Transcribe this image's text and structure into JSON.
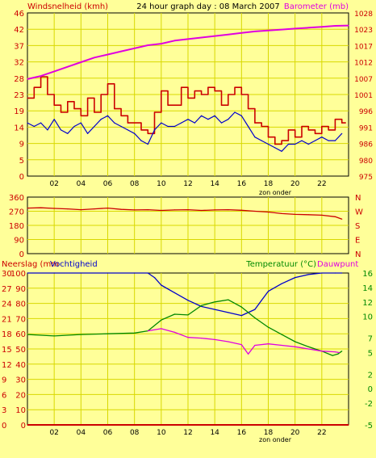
{
  "header": {
    "left_label": "Windsnelheid (kmh)",
    "title": "24 hour graph day : 08 March 2007",
    "right_label": "Barometer (mb)"
  },
  "colors": {
    "background": "#ffff99",
    "plot_background": "#ffff99",
    "grid": "#d8d800",
    "axis_text": "#cc0000",
    "wind": "#cc0000",
    "gust": "#0000cc",
    "barometer": "#e000e0",
    "direction": "#cc0000",
    "humidity": "#0000cc",
    "temperature": "#008800",
    "dewpoint": "#e000e0",
    "rain": "#cc0000",
    "green_text": "#008800"
  },
  "chart_data": [
    {
      "type": "line",
      "name": "wind-barometer",
      "x_ticks": [
        "02",
        "04",
        "06",
        "08",
        "10",
        "12",
        "14",
        "16",
        "18",
        "20",
        "22"
      ],
      "x_note": "zon onder",
      "y_left_ticks": [
        0,
        5,
        9,
        14,
        19,
        23,
        28,
        32,
        37,
        42,
        46
      ],
      "y_right_ticks": [
        975,
        980,
        986,
        991,
        996,
        1001,
        1007,
        1012,
        1017,
        1023,
        1028
      ],
      "xlim": [
        0,
        24
      ],
      "ylim_left": [
        0,
        46
      ],
      "ylim_right": [
        975,
        1028
      ],
      "series": [
        {
          "key": "wind",
          "axis": "left",
          "style": "step",
          "x": [
            0,
            0.5,
            1,
            1.5,
            2,
            2.5,
            3,
            3.5,
            4,
            4.5,
            5,
            5.5,
            6,
            6.5,
            7,
            7.5,
            8,
            8.5,
            9,
            9.5,
            10,
            10.5,
            11,
            11.5,
            12,
            12.5,
            13,
            13.5,
            14,
            14.5,
            15,
            15.5,
            16,
            16.5,
            17,
            17.5,
            18,
            18.5,
            19,
            19.5,
            20,
            20.5,
            21,
            21.5,
            22,
            22.5,
            23,
            23.5
          ],
          "values": [
            22,
            25,
            28,
            23,
            20,
            18,
            21,
            19,
            17,
            22,
            18,
            23,
            26,
            19,
            17,
            15,
            15,
            13,
            12,
            18,
            24,
            20,
            20,
            25,
            22,
            24,
            23,
            25,
            24,
            20,
            23,
            25,
            23,
            19,
            15,
            14,
            11,
            9,
            10,
            13,
            11,
            14,
            13,
            12,
            14,
            13,
            16,
            15
          ]
        },
        {
          "key": "gust",
          "axis": "left",
          "style": "line",
          "x": [
            0,
            0.5,
            1,
            1.5,
            2,
            2.5,
            3,
            3.5,
            4,
            4.5,
            5,
            5.5,
            6,
            6.5,
            7,
            7.5,
            8,
            8.5,
            9,
            9.5,
            10,
            10.5,
            11,
            11.5,
            12,
            12.5,
            13,
            13.5,
            14,
            14.5,
            15,
            15.5,
            16,
            16.5,
            17,
            17.5,
            18,
            18.5,
            19,
            19.5,
            20,
            20.5,
            21,
            21.5,
            22,
            22.5,
            23,
            23.5
          ],
          "values": [
            15,
            14,
            15,
            13,
            16,
            13,
            12,
            14,
            15,
            12,
            14,
            16,
            17,
            15,
            14,
            13,
            12,
            10,
            9,
            13,
            15,
            14,
            14,
            15,
            16,
            15,
            17,
            16,
            17,
            15,
            16,
            18,
            17,
            14,
            11,
            10,
            9,
            8,
            7,
            9,
            9,
            10,
            9,
            10,
            11,
            10,
            10,
            12
          ]
        },
        {
          "key": "barometer",
          "axis": "right",
          "style": "line",
          "x": [
            0,
            1,
            2,
            3,
            4,
            5,
            6,
            7,
            8,
            9,
            10,
            11,
            12,
            13,
            14,
            15,
            16,
            17,
            18,
            19,
            20,
            21,
            22,
            23,
            24
          ],
          "values": [
            1006.5,
            1007.5,
            1009,
            1010.5,
            1012,
            1013.5,
            1014.5,
            1015.5,
            1016.5,
            1017.5,
            1018,
            1019,
            1019.5,
            1020,
            1020.5,
            1021,
            1021.5,
            1022,
            1022.3,
            1022.6,
            1022.9,
            1023.2,
            1023.5,
            1023.8,
            1023.9
          ]
        }
      ]
    },
    {
      "type": "line",
      "name": "wind-direction",
      "y_left_ticks": [
        0,
        90,
        180,
        270,
        360
      ],
      "y_right_ticks": [
        "N",
        "E",
        "S",
        "W",
        "N"
      ],
      "xlim": [
        0,
        24
      ],
      "ylim": [
        0,
        360
      ],
      "series": [
        {
          "key": "direction",
          "style": "line",
          "x": [
            0,
            1,
            2,
            3,
            4,
            5,
            6,
            7,
            8,
            9,
            10,
            11,
            12,
            13,
            14,
            15,
            16,
            17,
            18,
            19,
            20,
            21,
            22,
            23,
            23.5
          ],
          "values": [
            290,
            292,
            288,
            285,
            280,
            285,
            290,
            282,
            278,
            280,
            275,
            278,
            280,
            275,
            278,
            280,
            276,
            270,
            265,
            255,
            250,
            248,
            245,
            235,
            220
          ]
        }
      ]
    },
    {
      "type": "line",
      "name": "rain-humidity-temperature",
      "left_label_1": "Neerslag (mm",
      "left_label_2": "Vochtigheid",
      "right_label_1": "Temperatuur (°C)",
      "right_label_2": "Dauwpunt",
      "x_ticks": [
        "02",
        "04",
        "06",
        "08",
        "10",
        "12",
        "14",
        "16",
        "18",
        "20",
        "22"
      ],
      "x_note": "zon onder",
      "y_rain_ticks": [
        0,
        3,
        6,
        9,
        12,
        15,
        18,
        21,
        24,
        27,
        30
      ],
      "y_humidity_ticks": [
        0,
        10,
        20,
        30,
        40,
        50,
        60,
        70,
        80,
        90,
        100
      ],
      "y_temp_ticks": [
        -5,
        -2,
        0,
        2,
        5,
        7,
        10,
        12,
        14,
        16
      ],
      "xlim": [
        0,
        24
      ],
      "ylim_humidity": [
        0,
        100
      ],
      "ylim_temp": [
        -5,
        16
      ],
      "series": [
        {
          "key": "humidity",
          "axis": "humidity",
          "style": "line",
          "x": [
            0,
            2,
            4,
            6,
            8,
            9,
            9.5,
            10,
            11,
            12,
            13,
            14,
            15,
            16,
            17,
            17.5,
            18,
            19,
            20,
            21,
            22,
            23,
            23.5
          ],
          "values": [
            100,
            100,
            100,
            100,
            100,
            100,
            97,
            92,
            87,
            82,
            78,
            76,
            74,
            72,
            76,
            82,
            88,
            93,
            97,
            99,
            100,
            100,
            100
          ]
        },
        {
          "key": "temperature",
          "axis": "temp",
          "style": "line",
          "x": [
            0,
            2,
            4,
            6,
            8,
            9,
            10,
            11,
            12,
            13,
            14,
            15,
            16,
            17,
            18,
            19,
            20,
            21,
            22,
            22.8,
            23.2,
            23.5
          ],
          "values": [
            7.5,
            7.3,
            7.5,
            7.6,
            7.7,
            8,
            9.5,
            10.3,
            10.2,
            11.5,
            12,
            12.3,
            11.3,
            9.8,
            8.5,
            7.5,
            6.5,
            5.8,
            5.2,
            4.6,
            4.8,
            5.2
          ]
        },
        {
          "key": "dewpoint",
          "axis": "temp",
          "style": "line",
          "x": [
            9,
            10,
            11,
            12,
            13,
            14,
            15,
            16,
            16.5,
            17,
            18,
            19,
            20,
            21,
            22,
            23,
            23.3
          ],
          "values": [
            8,
            8.3,
            7.8,
            7.1,
            7.0,
            6.8,
            6.5,
            6.1,
            4.8,
            6.0,
            6.2,
            6.0,
            5.8,
            5.5,
            5.2,
            5.1,
            5.0
          ]
        },
        {
          "key": "rain",
          "axis": "humidity",
          "style": "line",
          "x": [
            0,
            24
          ],
          "values": [
            0,
            0
          ]
        }
      ]
    }
  ]
}
